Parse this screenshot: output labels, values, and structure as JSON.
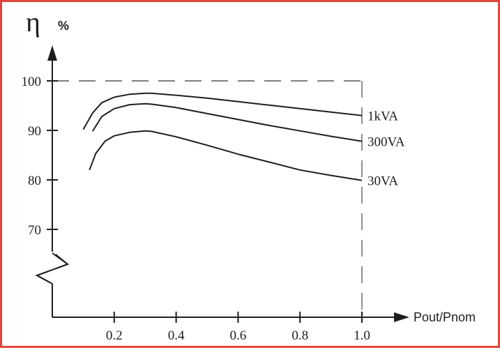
{
  "chart_data": {
    "type": "line",
    "title": "",
    "ylabel_symbol": "η",
    "ylabel_unit": "%",
    "xlabel": "Pout/Pnom",
    "xlim": [
      0,
      1.0
    ],
    "ylim": [
      70,
      100
    ],
    "y_axis_break": true,
    "grid": false,
    "reference_line": {
      "y": 100,
      "x": 1.0,
      "style": "dashed"
    },
    "x_ticks": [
      0.2,
      0.4,
      0.6,
      0.8,
      1.0
    ],
    "x_tick_labels": [
      "0.2",
      "0.4",
      "0.6",
      "0.8",
      "1.0"
    ],
    "y_ticks": [
      70,
      80,
      90,
      100
    ],
    "y_tick_labels": [
      "70",
      "80",
      "90",
      "100"
    ],
    "legend_position": "right-end-of-lines",
    "series": [
      {
        "name": "1kVA",
        "x": [
          0.1,
          0.13,
          0.16,
          0.2,
          0.25,
          0.3,
          0.32,
          0.4,
          0.5,
          0.6,
          0.7,
          0.8,
          0.9,
          1.0
        ],
        "y": [
          90.2,
          93.5,
          95.6,
          96.7,
          97.3,
          97.5,
          97.5,
          97.1,
          96.5,
          95.8,
          95.1,
          94.4,
          93.7,
          93.0
        ]
      },
      {
        "name": "300VA",
        "x": [
          0.13,
          0.16,
          0.2,
          0.25,
          0.3,
          0.32,
          0.4,
          0.5,
          0.6,
          0.7,
          0.8,
          0.9,
          1.0
        ],
        "y": [
          89.8,
          92.8,
          94.4,
          95.2,
          95.4,
          95.3,
          94.6,
          93.4,
          92.2,
          91.0,
          89.9,
          88.8,
          87.8
        ]
      },
      {
        "name": "30VA",
        "x": [
          0.12,
          0.14,
          0.17,
          0.2,
          0.25,
          0.3,
          0.32,
          0.4,
          0.5,
          0.6,
          0.7,
          0.8,
          0.9,
          1.0
        ],
        "y": [
          82.0,
          85.3,
          87.8,
          88.9,
          89.6,
          89.9,
          89.8,
          88.7,
          87.0,
          85.2,
          83.6,
          82.0,
          80.9,
          79.9
        ]
      }
    ],
    "colors": {
      "line": "#1e1e1e",
      "frame_border": "#e0463a",
      "dash": "#555555"
    }
  }
}
